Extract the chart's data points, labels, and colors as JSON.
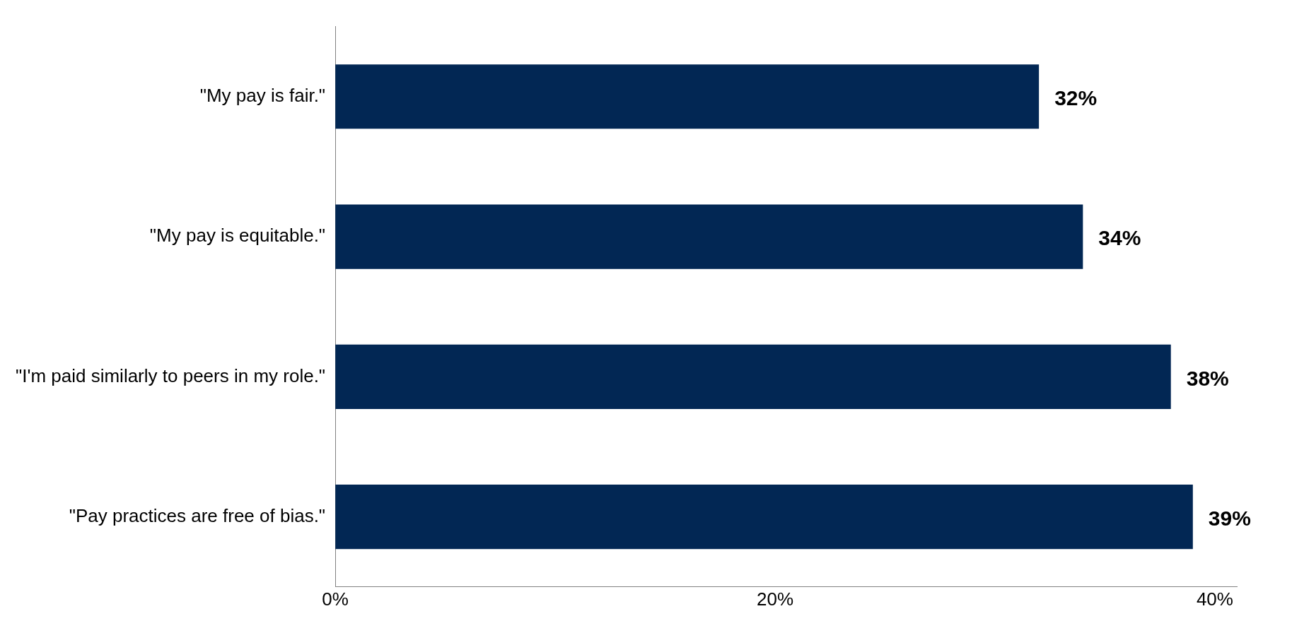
{
  "chart_data": {
    "type": "bar",
    "orientation": "horizontal",
    "categories": [
      "\"My pay is fair.\"",
      "\"My pay is equitable.\"",
      "\"I'm paid similarly to peers in my role.\"",
      "\"Pay practices are free of bias.\""
    ],
    "values": [
      32,
      34,
      38,
      39
    ],
    "value_labels": [
      "32%",
      "34%",
      "38%",
      "39%"
    ],
    "color": "#022754",
    "xlim": [
      0,
      41
    ],
    "xticks": [
      {
        "value": 0,
        "label": "0%"
      },
      {
        "value": 20,
        "label": "20%"
      },
      {
        "value": 40,
        "label": "40%"
      }
    ],
    "grid": false,
    "legend": false
  }
}
